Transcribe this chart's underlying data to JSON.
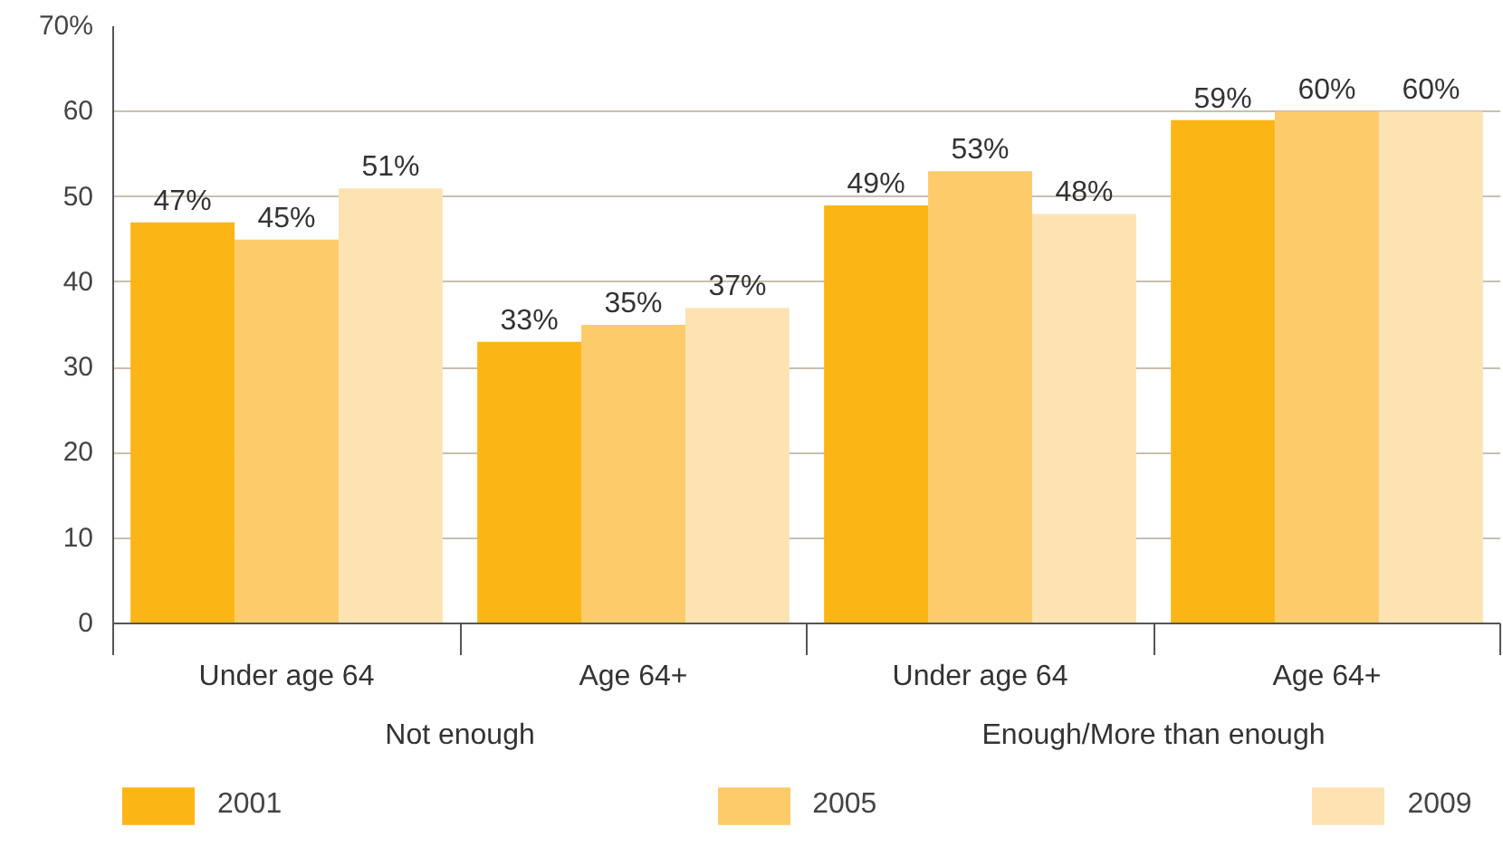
{
  "chart_data": {
    "type": "bar",
    "categories": [
      "Under age 64",
      "Age 64+",
      "Under age 64",
      "Age 64+"
    ],
    "series": [
      {
        "name": "2001",
        "color": "#fbb616",
        "values": [
          47,
          33,
          49,
          59
        ],
        "value_labels": [
          "47%",
          "33%",
          "49%",
          "59%"
        ]
      },
      {
        "name": "2005",
        "color": "#fdcb6a",
        "values": [
          45,
          35,
          53,
          60
        ],
        "value_labels": [
          "45%",
          "35%",
          "53%",
          "60%"
        ]
      },
      {
        "name": "2009",
        "color": "#fde3b2",
        "values": [
          51,
          37,
          48,
          60
        ],
        "value_labels": [
          "51%",
          "37%",
          "48%",
          "60%"
        ]
      }
    ],
    "ylim": [
      0,
      70
    ],
    "yticks": [
      0,
      10,
      20,
      30,
      40,
      50,
      60,
      {
        "value": 70,
        "label": "70%"
      }
    ],
    "grid": "y",
    "legend": "bottom",
    "annotations": [
      "Not enough",
      "Enough/More than enough"
    ]
  }
}
